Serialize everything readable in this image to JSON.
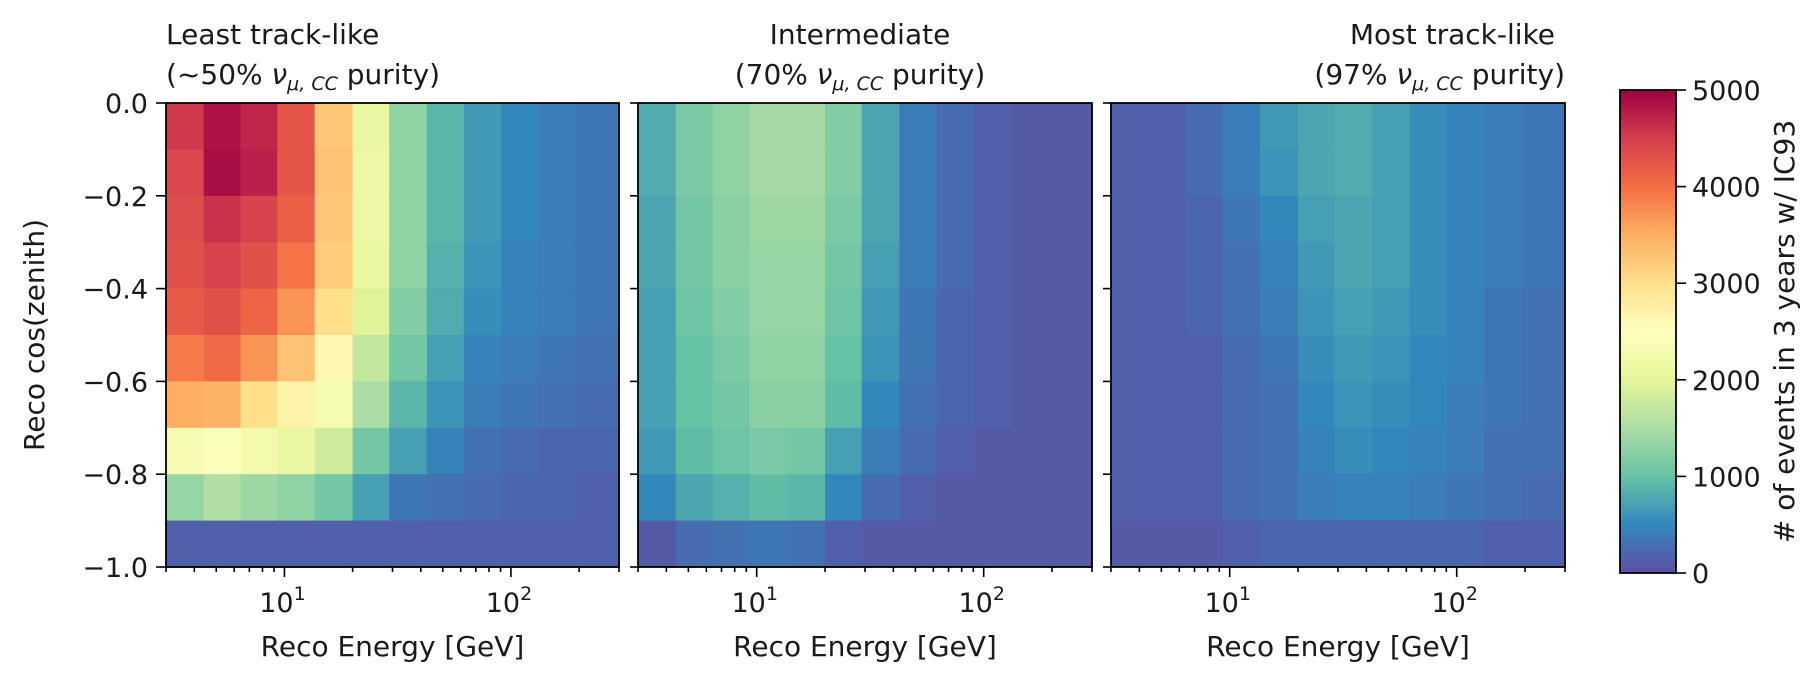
{
  "chart_data": {
    "type": "heatmap",
    "x_scale": "log",
    "x_edges_gev": [
      3,
      4.4,
      6.4,
      9.3,
      13.6,
      20,
      29,
      42.5,
      62,
      90.5,
      132,
      193,
      300
    ],
    "xlim": [
      3,
      300
    ],
    "ylim": [
      -1.0,
      0.0
    ],
    "y_edges": [
      -1.0,
      -0.9,
      -0.8,
      -0.7,
      -0.6,
      -0.5,
      -0.4,
      -0.3,
      -0.2,
      -0.1,
      0.0
    ],
    "x_ticks": [
      {
        "value": 10,
        "base": "10",
        "exp": "1"
      },
      {
        "value": 100,
        "base": "10",
        "exp": "2"
      }
    ],
    "y_ticks": [
      "0.0",
      "−0.2",
      "−0.4",
      "−0.6",
      "−0.8",
      "−1.0"
    ],
    "xlabel": "Reco Energy [GeV]",
    "ylabel": "Reco cos(zenith)",
    "colorbar": {
      "label": "# of events in 3 years w/ IC93",
      "min": 0,
      "max": 5000,
      "ticks": [
        "0",
        "1000",
        "2000",
        "3000",
        "4000",
        "5000"
      ],
      "colormap": "Spectral_r"
    },
    "panels": [
      {
        "title_line1": "Least track-like",
        "title_pre": "(~50% ",
        "title_sym": "ν",
        "title_sub": "μ, CC",
        "title_post": " purity)",
        "values": [
          [
            4550,
            4850,
            4700,
            4250,
            3250,
            2100,
            1300,
            900,
            650,
            500,
            400,
            350
          ],
          [
            4400,
            4900,
            4750,
            4250,
            3300,
            2150,
            1300,
            900,
            650,
            500,
            400,
            350
          ],
          [
            4350,
            4600,
            4450,
            4150,
            3250,
            2150,
            1300,
            900,
            650,
            500,
            400,
            350
          ],
          [
            4300,
            4450,
            4300,
            3950,
            3200,
            2100,
            1300,
            850,
            600,
            450,
            400,
            350
          ],
          [
            4200,
            4300,
            4100,
            3700,
            3000,
            1950,
            1200,
            800,
            550,
            450,
            400,
            350
          ],
          [
            3900,
            4050,
            3700,
            3300,
            2650,
            1700,
            1100,
            700,
            450,
            400,
            350,
            300
          ],
          [
            3500,
            3450,
            3000,
            2700,
            2300,
            1500,
            900,
            600,
            400,
            350,
            300,
            250
          ],
          [
            2350,
            2450,
            2250,
            2100,
            1800,
            1100,
            700,
            450,
            300,
            250,
            200,
            200
          ],
          [
            1350,
            1550,
            1400,
            1300,
            1100,
            700,
            350,
            300,
            250,
            200,
            200,
            150
          ],
          [
            150,
            150,
            150,
            150,
            150,
            150,
            150,
            150,
            150,
            150,
            150,
            150
          ]
        ]
      },
      {
        "title_line1": "Intermediate",
        "title_pre": "(70% ",
        "title_sym": "ν",
        "title_sub": "μ, CC",
        "title_post": " purity)",
        "values": [
          [
            800,
            1150,
            1300,
            1450,
            1450,
            1200,
            750,
            400,
            250,
            150,
            100,
            100
          ],
          [
            800,
            1150,
            1300,
            1450,
            1450,
            1200,
            750,
            400,
            250,
            150,
            100,
            100
          ],
          [
            750,
            1100,
            1250,
            1400,
            1400,
            1150,
            750,
            400,
            250,
            150,
            100,
            100
          ],
          [
            750,
            1100,
            1250,
            1350,
            1350,
            1100,
            700,
            400,
            250,
            150,
            100,
            100
          ],
          [
            700,
            1050,
            1200,
            1350,
            1350,
            1050,
            650,
            350,
            200,
            150,
            100,
            100
          ],
          [
            700,
            1000,
            1150,
            1300,
            1300,
            1000,
            600,
            350,
            200,
            150,
            100,
            100
          ],
          [
            700,
            1000,
            1100,
            1250,
            1250,
            950,
            500,
            300,
            200,
            150,
            100,
            100
          ],
          [
            650,
            950,
            1050,
            1150,
            1100,
            700,
            400,
            250,
            150,
            100,
            100,
            100
          ],
          [
            500,
            750,
            850,
            950,
            900,
            500,
            250,
            150,
            100,
            100,
            100,
            100
          ],
          [
            100,
            250,
            300,
            350,
            300,
            150,
            100,
            100,
            100,
            100,
            100,
            100
          ]
        ]
      },
      {
        "title_line1": "Most track-like",
        "title_pre": "(97% ",
        "title_sym": "ν",
        "title_sub": "μ, CC",
        "title_post": " purity)",
        "values": [
          [
            150,
            150,
            250,
            400,
            650,
            750,
            800,
            700,
            550,
            450,
            400,
            350
          ],
          [
            150,
            150,
            250,
            400,
            600,
            750,
            800,
            700,
            550,
            450,
            400,
            350
          ],
          [
            150,
            150,
            200,
            350,
            500,
            700,
            750,
            700,
            550,
            450,
            400,
            350
          ],
          [
            150,
            150,
            200,
            300,
            450,
            650,
            750,
            700,
            550,
            450,
            400,
            350
          ],
          [
            150,
            150,
            200,
            300,
            400,
            600,
            700,
            650,
            550,
            450,
            350,
            300
          ],
          [
            150,
            150,
            150,
            250,
            350,
            550,
            650,
            600,
            500,
            450,
            350,
            300
          ],
          [
            150,
            150,
            150,
            250,
            300,
            500,
            600,
            550,
            500,
            400,
            350,
            300
          ],
          [
            150,
            150,
            150,
            250,
            300,
            450,
            550,
            500,
            450,
            400,
            300,
            300
          ],
          [
            150,
            150,
            150,
            250,
            300,
            400,
            450,
            450,
            400,
            350,
            300,
            250
          ],
          [
            100,
            100,
            100,
            150,
            200,
            200,
            200,
            200,
            200,
            200,
            150,
            150
          ]
        ]
      }
    ]
  }
}
